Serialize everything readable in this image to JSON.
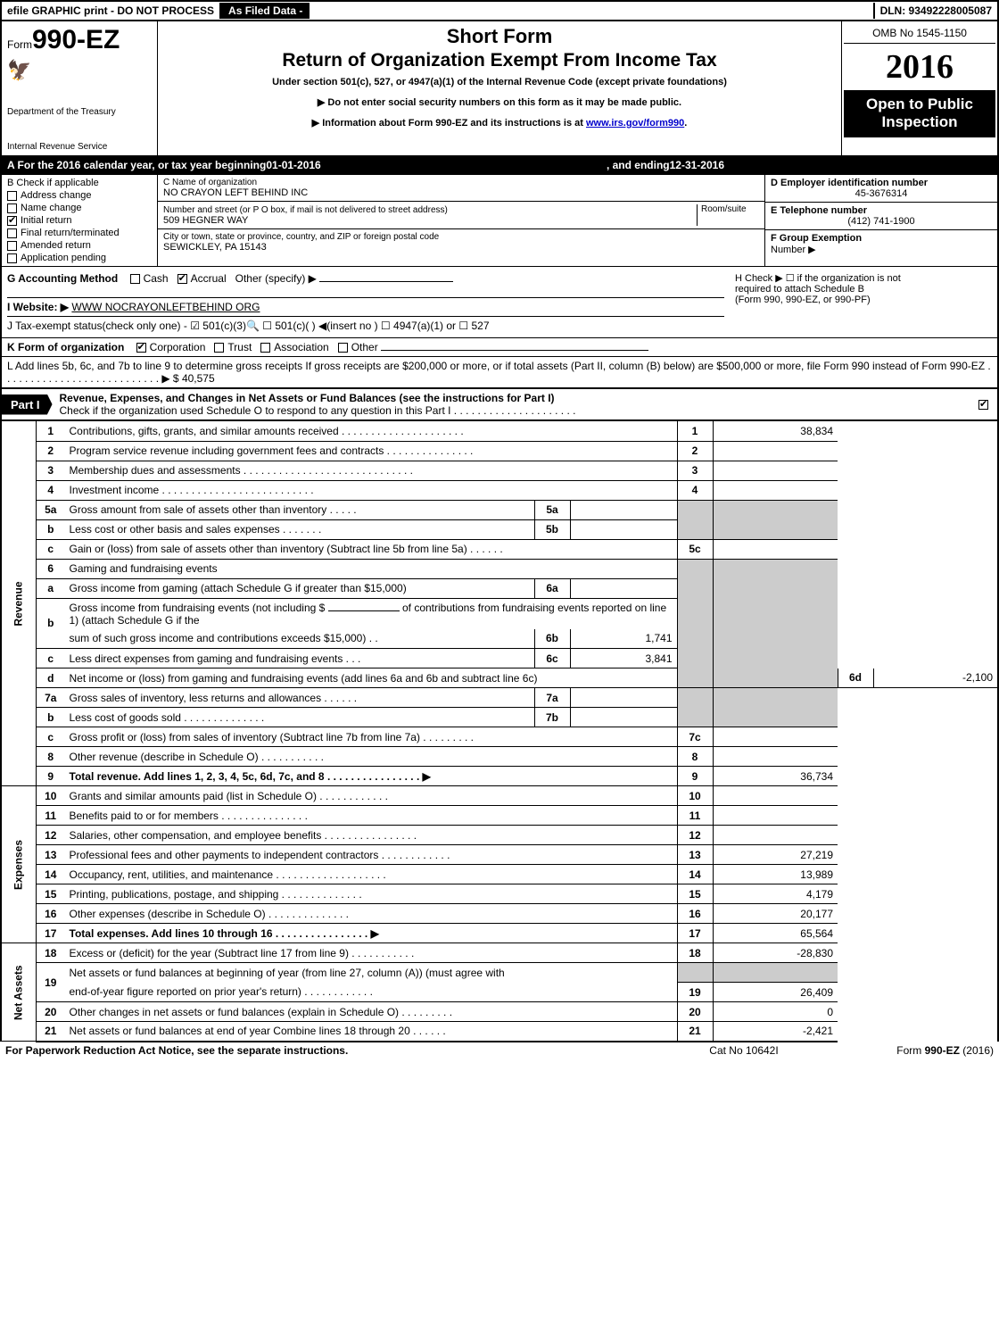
{
  "top_bar": {
    "left": "efile GRAPHIC print - DO NOT PROCESS",
    "mid": "As Filed Data -",
    "right": "DLN: 93492228005087"
  },
  "header": {
    "form_prefix": "Form",
    "form_number": "990-EZ",
    "treasury1": "Department of the Treasury",
    "treasury2": "Internal Revenue Service",
    "title1": "Short Form",
    "title2": "Return of Organization Exempt From Income Tax",
    "subtitle": "Under section 501(c), 527, or 4947(a)(1) of the Internal Revenue Code (except private foundations)",
    "note1": "▶ Do not enter social security numbers on this form as it may be made public.",
    "note2_pre": "▶ Information about Form 990-EZ and its instructions is at ",
    "note2_link": "www.irs.gov/form990",
    "note2_post": ".",
    "omb": "OMB No 1545-1150",
    "year": "2016",
    "open1": "Open to Public",
    "open2": "Inspection"
  },
  "line_a": {
    "label": "A  For the 2016 calendar year, or tax year beginning ",
    "begin": "01-01-2016",
    "mid": " , and ending ",
    "end": "12-31-2016"
  },
  "section_b": {
    "label": "B  Check if applicable",
    "opts": [
      {
        "text": "Address change",
        "checked": false
      },
      {
        "text": "Name change",
        "checked": false
      },
      {
        "text": "Initial return",
        "checked": true
      },
      {
        "text": "Final return/terminated",
        "checked": false
      },
      {
        "text": "Amended return",
        "checked": false
      },
      {
        "text": "Application pending",
        "checked": false
      }
    ]
  },
  "section_c": {
    "name_label": "C Name of organization",
    "name": "NO CRAYON LEFT BEHIND INC",
    "street_label": "Number and street (or P  O  box, if mail is not delivered to street address)",
    "room_label": "Room/suite",
    "street": "509 HEGNER WAY",
    "city_label": "City or town, state or province, country, and ZIP or foreign postal code",
    "city": "SEWICKLEY, PA  15143"
  },
  "section_d": {
    "label": "D Employer identification number",
    "value": "45-3676314",
    "e_label": "E Telephone number",
    "e_value": "(412) 741-1900",
    "f_label": "F Group Exemption",
    "f_label2": "Number    ▶"
  },
  "section_g": {
    "label": "G Accounting Method",
    "cash": "Cash",
    "accrual": "Accrual",
    "other": "Other (specify) ▶"
  },
  "section_h": {
    "line1": "H    Check ▶  ☐  if the organization is not",
    "line2": "required to attach Schedule B",
    "line3": "(Form 990, 990-EZ, or 990-PF)"
  },
  "section_i": {
    "label": "I Website: ▶",
    "value": "WWW NOCRAYONLEFTBEHIND ORG"
  },
  "section_j": {
    "text": "J Tax-exempt status(check only one) - ☑ 501(c)(3)🔍 ☐ 501(c)(  ) ◀(insert no ) ☐ 4947(a)(1) or ☐ 527"
  },
  "section_k": {
    "label": "K Form of organization",
    "corp": "Corporation",
    "trust": "Trust",
    "assoc": "Association",
    "other": "Other"
  },
  "section_l": {
    "text": "L Add lines 5b, 6c, and 7b to line 9 to determine gross receipts  If gross receipts are $200,000 or more, or if total assets (Part II, column (B) below) are $500,000 or more, file Form 990 instead of Form 990-EZ  .  .  .  .  .  .  .  .  .  .  .  .  .  .  .  .  .  .  .  .  .  .  .  .  .  .  .  ▶ $ 40,575"
  },
  "part1": {
    "label": "Part I",
    "title": "Revenue, Expenses, and Changes in Net Assets or Fund Balances (see the instructions for Part I)",
    "sub": "Check if the organization used Schedule O to respond to any question in this Part I .  .  .  .  .  .  .  .  .  .  .  .  .  .  .  .  .  .  .  .  ."
  },
  "rows": {
    "side_revenue": "Revenue",
    "side_expenses": "Expenses",
    "side_netassets": "Net Assets",
    "r1": {
      "no": "1",
      "desc": "Contributions, gifts, grants, and similar amounts received .  .  .  .  .  .  .  .  .  .  .  .  .  .  .  .  .  .  .  .  .",
      "num": "1",
      "amt": "38,834"
    },
    "r2": {
      "no": "2",
      "desc": "Program service revenue including government fees and contracts .  .  .  .  .  .  .  .  .  .  .  .  .  .  .",
      "num": "2",
      "amt": ""
    },
    "r3": {
      "no": "3",
      "desc": "Membership dues and assessments .  .  .  .  .  .  .  .  .  .  .  .  .  .  .  .  .  .  .  .  .  .  .  .  .  .  .  .  .",
      "num": "3",
      "amt": ""
    },
    "r4": {
      "no": "4",
      "desc": "Investment income .  .  .  .  .  .  .  .  .  .  .  .  .  .  .  .  .  .  .  .  .  .  .  .  .  .",
      "num": "4",
      "amt": ""
    },
    "r5a": {
      "no": "5a",
      "desc": "Gross amount from sale of assets other than inventory .  .  .  .  .",
      "sub": "5a",
      "subval": ""
    },
    "r5b": {
      "no": "b",
      "desc": "Less  cost or other basis and sales expenses .  .  .  .  .  .  .",
      "sub": "5b",
      "subval": ""
    },
    "r5c": {
      "no": "c",
      "desc": "Gain or (loss) from sale of assets other than inventory (Subtract line 5b from line 5a) .   .   .   .   .   .",
      "num": "5c",
      "amt": ""
    },
    "r6": {
      "no": "6",
      "desc": "Gaming and fundraising events"
    },
    "r6a": {
      "no": "a",
      "desc": "Gross income from gaming (attach Schedule G if greater than $15,000)",
      "sub": "6a",
      "subval": ""
    },
    "r6b": {
      "no": "b",
      "desc1": "Gross income from fundraising events (not including $ ",
      "desc2": " of contributions from fundraising events reported on line 1) (attach Schedule G if the",
      "desc3": "sum of such gross income and contributions exceeds $15,000)    .   .",
      "sub": "6b",
      "subval": "1,741"
    },
    "r6c": {
      "no": "c",
      "desc": "Less  direct expenses from gaming and fundraising events      .   .   .",
      "sub": "6c",
      "subval": "3,841"
    },
    "r6d": {
      "no": "d",
      "desc": "Net income or (loss) from gaming and fundraising events (add lines 6a and 6b and subtract line 6c)",
      "num": "6d",
      "amt": "-2,100"
    },
    "r7a": {
      "no": "7a",
      "desc": "Gross sales of inventory, less returns and allowances .   .   .   .   .   .",
      "sub": "7a",
      "subval": ""
    },
    "r7b": {
      "no": "b",
      "desc": "Less  cost of goods sold            .   .   .   .   .   .   .   .   .   .   .   .   .   .",
      "sub": "7b",
      "subval": ""
    },
    "r7c": {
      "no": "c",
      "desc": "Gross profit or (loss) from sales of inventory (Subtract line 7b from line 7a) .   .   .   .   .   .   .   .   .",
      "num": "7c",
      "amt": ""
    },
    "r8": {
      "no": "8",
      "desc": "Other revenue (describe in Schedule O)                                    .   .   .   .   .   .   .   .   .   .   .",
      "num": "8",
      "amt": ""
    },
    "r9": {
      "no": "9",
      "desc": "Total revenue. Add lines 1, 2, 3, 4, 5c, 6d, 7c, and 8 .   .   .   .   .   .   .   .   .   .   .   .   .   .   .   .     ▶",
      "num": "9",
      "amt": "36,734"
    },
    "r10": {
      "no": "10",
      "desc": "Grants and similar amounts paid (list in Schedule O)              .   .   .   .   .   .   .   .   .   .   .   .",
      "num": "10",
      "amt": ""
    },
    "r11": {
      "no": "11",
      "desc": "Benefits paid to or for members                             .   .   .   .   .   .   .   .   .   .   .   .   .   .   .",
      "num": "11",
      "amt": ""
    },
    "r12": {
      "no": "12",
      "desc": "Salaries, other compensation, and employee benefits .   .   .   .   .   .   .   .   .   .   .   .   .   .   .   .",
      "num": "12",
      "amt": ""
    },
    "r13": {
      "no": "13",
      "desc": "Professional fees and other payments to independent contractors  .   .   .   .   .   .   .   .   .   .   .   .",
      "num": "13",
      "amt": "27,219"
    },
    "r14": {
      "no": "14",
      "desc": "Occupancy, rent, utilities, and maintenance .   .   .   .   .   .   .   .   .   .   .   .   .   .   .   .   .   .   .",
      "num": "14",
      "amt": "13,989"
    },
    "r15": {
      "no": "15",
      "desc": "Printing, publications, postage, and shipping                   .   .   .   .   .   .   .   .   .   .   .   .   .   .",
      "num": "15",
      "amt": "4,179"
    },
    "r16": {
      "no": "16",
      "desc": "Other expenses (describe in Schedule O)                        .   .   .   .   .   .   .   .   .   .   .   .   .   .",
      "num": "16",
      "amt": "20,177"
    },
    "r17": {
      "no": "17",
      "desc": "Total expenses. Add lines 10 through 16           .   .   .   .   .   .   .   .   .   .   .   .   .   .   .   .     ▶",
      "num": "17",
      "amt": "65,564"
    },
    "r18": {
      "no": "18",
      "desc": "Excess or (deficit) for the year (Subtract line 17 from line 9)          .   .   .   .   .   .   .   .   .   .   .",
      "num": "18",
      "amt": "-28,830"
    },
    "r19": {
      "no": "19",
      "desc1": "Net assets or fund balances at beginning of year (from line 27, column (A)) (must agree with",
      "desc2": "end-of-year figure reported on prior year's return)                   .   .   .   .   .   .   .   .   .   .   .   .",
      "num": "19",
      "amt": "26,409"
    },
    "r20": {
      "no": "20",
      "desc": "Other changes in net assets or fund balances (explain in Schedule O)      .   .   .   .   .   .   .   .   .",
      "num": "20",
      "amt": "0"
    },
    "r21": {
      "no": "21",
      "desc": "Net assets or fund balances at end of year  Combine lines 18 through 20            .   .   .   .   .   .",
      "num": "21",
      "amt": "-2,421"
    }
  },
  "footer": {
    "left": "For Paperwork Reduction Act Notice, see the separate instructions.",
    "center": "Cat  No  10642I",
    "right": "Form 990-EZ (2016)"
  },
  "colors": {
    "black": "#000000",
    "white": "#ffffff",
    "grey": "#cccccc",
    "link": "#0000cc"
  }
}
